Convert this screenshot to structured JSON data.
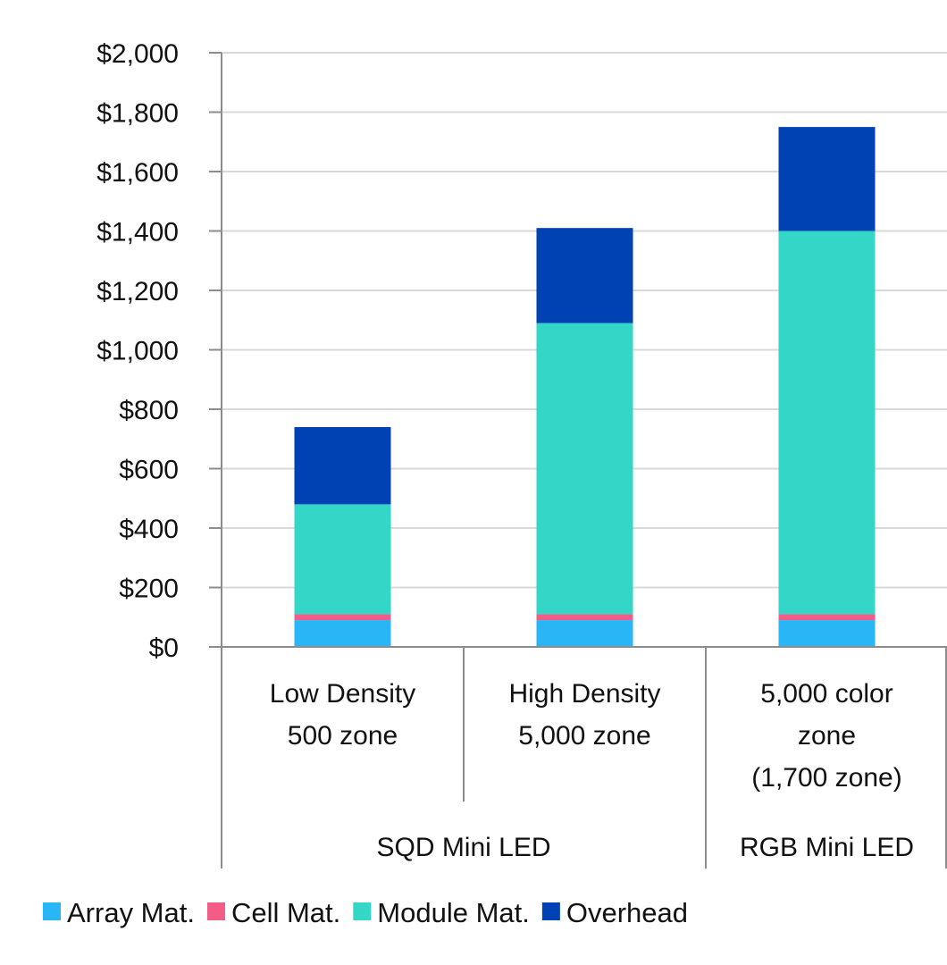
{
  "chart_data": {
    "type": "bar",
    "stacked": true,
    "categories": [
      [
        "Low Density",
        "500 zone"
      ],
      [
        "High Density",
        "5,000 zone"
      ],
      [
        "5,000 color",
        "zone",
        "(1,700 zone)"
      ]
    ],
    "groups": [
      {
        "label": "SQD Mini LED",
        "categories": [
          0,
          1
        ]
      },
      {
        "label": "RGB Mini LED",
        "categories": [
          2
        ]
      }
    ],
    "series": [
      {
        "name": "Array Mat.",
        "color": "#29b6f6",
        "values": [
          90,
          90,
          90
        ]
      },
      {
        "name": "Cell Mat.",
        "color": "#f25c86",
        "values": [
          20,
          20,
          20
        ]
      },
      {
        "name": "Module Mat.",
        "color": "#34d6c8",
        "values": [
          370,
          980,
          1290
        ]
      },
      {
        "name": "Overhead",
        "color": "#0041b3",
        "values": [
          260,
          320,
          350
        ]
      }
    ],
    "yticks": [
      {
        "value": 0,
        "label": "$0"
      },
      {
        "value": 200,
        "label": "$200"
      },
      {
        "value": 400,
        "label": "$400"
      },
      {
        "value": 600,
        "label": "$600"
      },
      {
        "value": 800,
        "label": "$800"
      },
      {
        "value": 1000,
        "label": "$1,000"
      },
      {
        "value": 1200,
        "label": "$1,200"
      },
      {
        "value": 1400,
        "label": "$1,400"
      },
      {
        "value": 1600,
        "label": "$1,600"
      },
      {
        "value": 1800,
        "label": "$1,800"
      },
      {
        "value": 2000,
        "label": "$2,000"
      }
    ],
    "ylim": [
      0,
      2000
    ],
    "grid": true,
    "legend_position": "bottom",
    "title": "",
    "xlabel": "",
    "ylabel": ""
  }
}
